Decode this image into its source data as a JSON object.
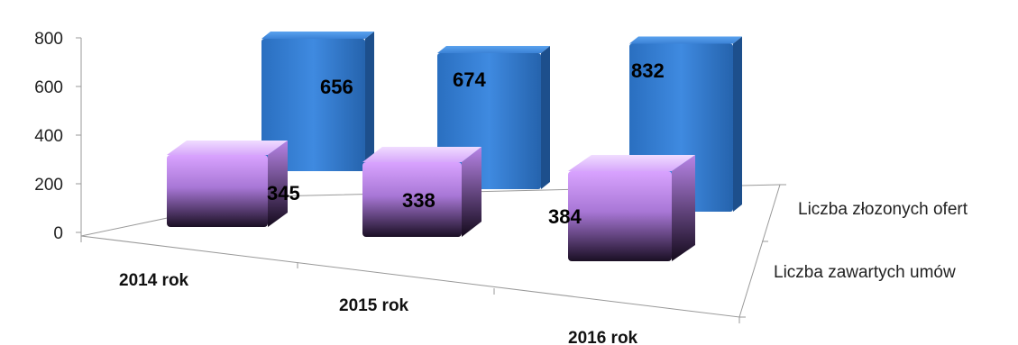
{
  "chart_data": {
    "type": "bar",
    "categories": [
      "2014 rok",
      "2015 rok",
      "2016 rok"
    ],
    "series": [
      {
        "name": "Liczba złozonych ofert",
        "values": [
          656,
          674,
          832
        ],
        "color": "#2e75c8"
      },
      {
        "name": "Liczba zawartych umów",
        "values": [
          345,
          338,
          384
        ],
        "color": "#c98ef5"
      }
    ],
    "yticks": [
      0,
      200,
      400,
      600,
      800
    ],
    "ylim": [
      0,
      800
    ],
    "grid": false,
    "legend": "right"
  }
}
